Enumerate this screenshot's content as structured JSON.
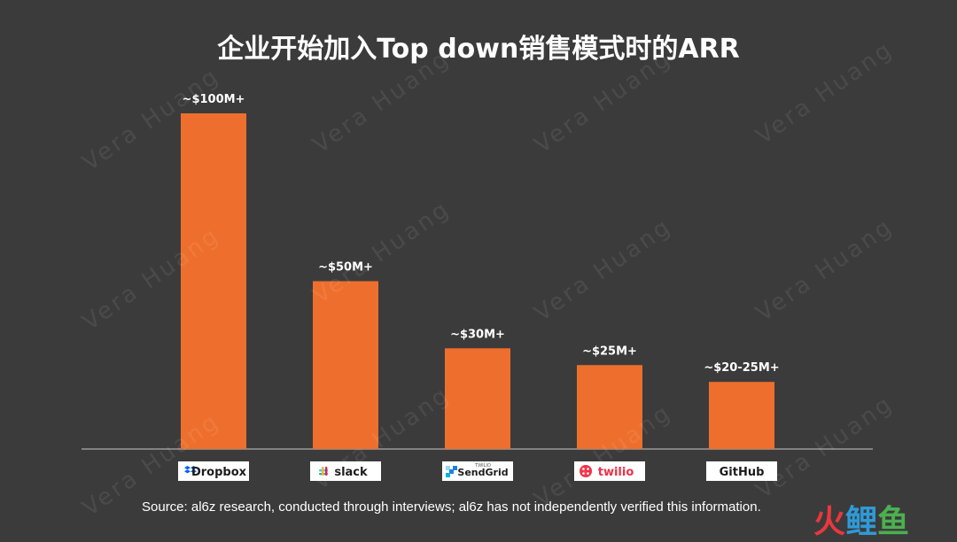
{
  "page": {
    "background": "#3b3b3b",
    "bar_color": "#ee6f2d"
  },
  "watermark_text": "Vera Huang",
  "corner_logo": {
    "glyphs": [
      "火",
      "鲤",
      "鱼"
    ]
  },
  "source": "Source: al6z research, conducted through interviews; al6z has not independently verified this information.",
  "chart_data": {
    "type": "bar",
    "title": "企业开始加入Top down销售模式时的ARR",
    "xlabel": "",
    "ylabel": "",
    "ylim": [
      0,
      110
    ],
    "grid": false,
    "categories": [
      "Dropbox",
      "slack",
      "SendGrid",
      "twilio",
      "GitHub"
    ],
    "values": [
      100,
      50,
      30,
      25,
      20
    ],
    "data_labels": [
      "~$100M+",
      "~$50M+",
      "~$30M+",
      "~$25M+",
      "~$20-25M+"
    ],
    "logo_icons": [
      "dropbox-box-icon",
      "slack-hash-icon",
      "sendgrid-squares-icon",
      "twilio-circle-icon",
      "none"
    ],
    "logo_prefix": [
      "",
      "",
      "TWILIO",
      "",
      ""
    ]
  }
}
